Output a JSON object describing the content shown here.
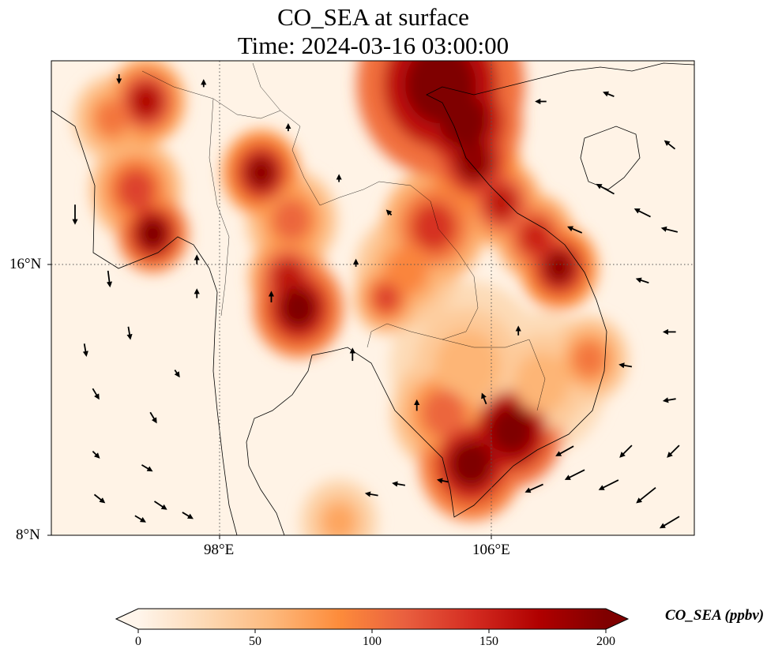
{
  "title": {
    "line1": "CO_SEA at surface",
    "line2": "Time: 2024-03-16 03:00:00"
  },
  "chart_data": {
    "type": "heatmap",
    "variable": "CO_SEA",
    "units": "ppbv",
    "lon_range": [
      93,
      112
    ],
    "lat_range": [
      8,
      22
    ],
    "x_ticks": [
      {
        "value": 98,
        "label": "98°E"
      },
      {
        "value": 106,
        "label": "106°E"
      }
    ],
    "y_ticks": [
      {
        "value": 16,
        "label": "16°N"
      },
      {
        "value": 8,
        "label": "8°N"
      }
    ],
    "colorbar": {
      "label": "CO_SEA (ppbv)",
      "min": 0,
      "max": 200,
      "ticks": [
        {
          "v": 0,
          "label": "0"
        },
        {
          "v": 50,
          "label": "50"
        },
        {
          "v": 100,
          "label": "100"
        },
        {
          "v": 150,
          "label": "150"
        },
        {
          "v": 200,
          "label": "200"
        }
      ],
      "extend": "both",
      "colormap": [
        "#fff5eb",
        "#fdd9b4",
        "#fdb97d",
        "#fd8c3b",
        "#e95f3f",
        "#d42c21",
        "#b00000",
        "#7f0000"
      ]
    },
    "hotspots": [
      {
        "lon": 104.5,
        "lat": 21.3,
        "value": 230,
        "r": 1.3
      },
      {
        "lon": 105.2,
        "lat": 20.2,
        "value": 220,
        "r": 0.9
      },
      {
        "lon": 105.5,
        "lat": 19.0,
        "value": 190,
        "r": 0.7
      },
      {
        "lon": 106.3,
        "lat": 17.8,
        "value": 160,
        "r": 0.6
      },
      {
        "lon": 107.3,
        "lat": 16.8,
        "value": 150,
        "r": 0.6
      },
      {
        "lon": 108.0,
        "lat": 15.9,
        "value": 190,
        "r": 0.6
      },
      {
        "lon": 100.3,
        "lat": 14.7,
        "value": 210,
        "r": 0.7
      },
      {
        "lon": 100.0,
        "lat": 15.6,
        "value": 160,
        "r": 0.6
      },
      {
        "lon": 99.2,
        "lat": 18.7,
        "value": 190,
        "r": 0.6
      },
      {
        "lon": 100.1,
        "lat": 17.3,
        "value": 110,
        "r": 0.7
      },
      {
        "lon": 96.0,
        "lat": 16.9,
        "value": 210,
        "r": 0.55
      },
      {
        "lon": 95.5,
        "lat": 18.2,
        "value": 130,
        "r": 0.7
      },
      {
        "lon": 95.8,
        "lat": 20.8,
        "value": 170,
        "r": 0.6
      },
      {
        "lon": 94.8,
        "lat": 20.3,
        "value": 100,
        "r": 0.6
      },
      {
        "lon": 104.3,
        "lat": 17.1,
        "value": 140,
        "r": 0.8
      },
      {
        "lon": 102.9,
        "lat": 15.0,
        "value": 130,
        "r": 0.5
      },
      {
        "lon": 103.5,
        "lat": 15.8,
        "value": 90,
        "r": 0.8
      },
      {
        "lon": 106.6,
        "lat": 11.1,
        "value": 230,
        "r": 0.8
      },
      {
        "lon": 105.4,
        "lat": 10.1,
        "value": 210,
        "r": 0.8
      },
      {
        "lon": 104.6,
        "lat": 11.6,
        "value": 110,
        "r": 0.8
      },
      {
        "lon": 108.9,
        "lat": 13.2,
        "value": 100,
        "r": 0.6
      },
      {
        "lon": 101.5,
        "lat": 8.4,
        "value": 70,
        "r": 0.6
      },
      {
        "lon": 105.3,
        "lat": 13.0,
        "value": 60,
        "r": 1.2
      },
      {
        "lon": 107.5,
        "lat": 12.5,
        "value": 60,
        "r": 1.0
      }
    ],
    "wind_vectors": [
      {
        "lon": 93.7,
        "lat": 17.5,
        "u": 0,
        "v": -1
      },
      {
        "lon": 94.7,
        "lat": 15.6,
        "u": 0.1,
        "v": -0.8
      },
      {
        "lon": 95.3,
        "lat": 14.0,
        "u": 0.1,
        "v": -0.6
      },
      {
        "lon": 94.0,
        "lat": 13.5,
        "u": 0.1,
        "v": -0.6
      },
      {
        "lon": 94.3,
        "lat": 12.2,
        "u": 0.3,
        "v": -0.5
      },
      {
        "lon": 96.0,
        "lat": 11.5,
        "u": 0.3,
        "v": -0.5
      },
      {
        "lon": 94.3,
        "lat": 10.4,
        "u": 0.3,
        "v": -0.3
      },
      {
        "lon": 95.8,
        "lat": 10.0,
        "u": 0.5,
        "v": -0.3
      },
      {
        "lon": 94.4,
        "lat": 9.1,
        "u": 0.5,
        "v": -0.4
      },
      {
        "lon": 96.2,
        "lat": 8.9,
        "u": 0.6,
        "v": -0.4
      },
      {
        "lon": 97.0,
        "lat": 8.6,
        "u": 0.5,
        "v": -0.3
      },
      {
        "lon": 95.6,
        "lat": 8.5,
        "u": 0.5,
        "v": -0.3
      },
      {
        "lon": 97.3,
        "lat": 16.1,
        "u": 0,
        "v": 0.4
      },
      {
        "lon": 97.3,
        "lat": 15.1,
        "u": 0,
        "v": 0.4
      },
      {
        "lon": 96.7,
        "lat": 12.8,
        "u": 0.2,
        "v": -0.3
      },
      {
        "lon": 99.5,
        "lat": 15.0,
        "u": 0,
        "v": 0.5
      },
      {
        "lon": 101.9,
        "lat": 13.3,
        "u": 0,
        "v": 0.6
      },
      {
        "lon": 103.8,
        "lat": 11.8,
        "u": 0,
        "v": 0.5
      },
      {
        "lon": 105.8,
        "lat": 12.0,
        "u": -0.2,
        "v": 0.5
      },
      {
        "lon": 104.6,
        "lat": 9.6,
        "u": -0.5,
        "v": 0.1
      },
      {
        "lon": 103.3,
        "lat": 9.5,
        "u": -0.6,
        "v": 0.1
      },
      {
        "lon": 102.5,
        "lat": 9.2,
        "u": -0.6,
        "v": 0.1
      },
      {
        "lon": 107.3,
        "lat": 9.4,
        "u": -0.9,
        "v": -0.4
      },
      {
        "lon": 108.5,
        "lat": 9.8,
        "u": -1,
        "v": -0.5
      },
      {
        "lon": 109.5,
        "lat": 9.5,
        "u": -1,
        "v": -0.5
      },
      {
        "lon": 110.6,
        "lat": 9.2,
        "u": -1,
        "v": -0.8
      },
      {
        "lon": 111.3,
        "lat": 8.4,
        "u": -1,
        "v": -0.6
      },
      {
        "lon": 110.0,
        "lat": 10.5,
        "u": -0.6,
        "v": -0.6
      },
      {
        "lon": 111.4,
        "lat": 10.5,
        "u": -0.6,
        "v": -0.6
      },
      {
        "lon": 108.2,
        "lat": 10.5,
        "u": -0.9,
        "v": -0.5
      },
      {
        "lon": 109.4,
        "lat": 18.2,
        "u": -0.9,
        "v": 0.5
      },
      {
        "lon": 110.5,
        "lat": 17.5,
        "u": -0.8,
        "v": 0.4
      },
      {
        "lon": 111.3,
        "lat": 17.0,
        "u": -0.8,
        "v": 0.2
      },
      {
        "lon": 110.5,
        "lat": 15.5,
        "u": -0.6,
        "v": 0.2
      },
      {
        "lon": 111.3,
        "lat": 14.0,
        "u": -0.6,
        "v": 0
      },
      {
        "lon": 111.3,
        "lat": 19.5,
        "u": -0.5,
        "v": 0.4
      },
      {
        "lon": 108.5,
        "lat": 17.0,
        "u": -0.7,
        "v": 0.3
      },
      {
        "lon": 110.0,
        "lat": 13.0,
        "u": -0.6,
        "v": 0.1
      },
      {
        "lon": 111.3,
        "lat": 12.0,
        "u": -0.6,
        "v": -0.1
      },
      {
        "lon": 102.0,
        "lat": 16.0,
        "u": 0,
        "v": 0.3
      },
      {
        "lon": 103.0,
        "lat": 17.5,
        "u": -0.2,
        "v": 0.2
      },
      {
        "lon": 101.5,
        "lat": 18.5,
        "u": 0,
        "v": 0.3
      },
      {
        "lon": 95.0,
        "lat": 21.5,
        "u": 0,
        "v": -0.4
      },
      {
        "lon": 97.5,
        "lat": 21.3,
        "u": 0,
        "v": 0.3
      },
      {
        "lon": 100.0,
        "lat": 20.0,
        "u": 0,
        "v": 0.3
      },
      {
        "lon": 107.5,
        "lat": 20.8,
        "u": -0.5,
        "v": 0
      },
      {
        "lon": 109.5,
        "lat": 21.0,
        "u": -0.5,
        "v": 0.2
      },
      {
        "lon": 106.8,
        "lat": 14.0,
        "u": 0,
        "v": 0.4
      }
    ]
  }
}
